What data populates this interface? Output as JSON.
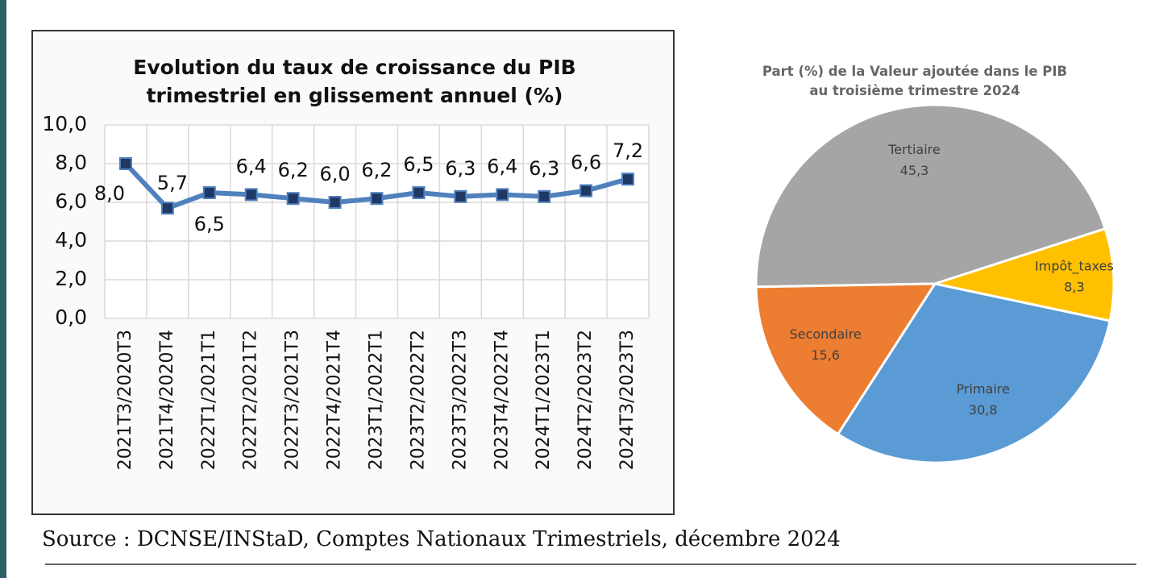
{
  "chart_data": [
    {
      "type": "line",
      "title": "Evolution du taux de croissance du PIB trimestriel en glissement annuel (%)",
      "categories": [
        "2021T3/2020T3",
        "2021T4/2020T4",
        "2022T1/2021T1",
        "2022T2/2021T2",
        "2022T3/2021T3",
        "2022T4/2021T4",
        "2023T1/2022T1",
        "2023T2/2022T2",
        "2023T3/2022T3",
        "2023T4/2022T4",
        "2024T1/2023T1",
        "2024T2/2023T2",
        "2024T3/2023T3"
      ],
      "values": [
        8.0,
        5.7,
        6.5,
        6.4,
        6.2,
        6.0,
        6.2,
        6.5,
        6.3,
        6.4,
        6.3,
        6.6,
        7.2
      ],
      "value_labels": [
        "8,0",
        "5,7",
        "6,5",
        "6,4",
        "6,2",
        "6,0",
        "6,2",
        "6,5",
        "6,3",
        "6,4",
        "6,3",
        "6,6",
        "7,2"
      ],
      "color": "#4f81bd",
      "marker_color": "#1f3864",
      "ylim": [
        0,
        10
      ],
      "yticks": [
        {
          "value": 0,
          "label": "0,0"
        },
        {
          "value": 2,
          "label": "2,0"
        },
        {
          "value": 4,
          "label": "4,0"
        },
        {
          "value": 6,
          "label": "6,0"
        },
        {
          "value": 8,
          "label": "8,0"
        },
        {
          "value": 10,
          "label": "10,0"
        }
      ],
      "grid": true
    },
    {
      "type": "pie",
      "title": "Part (%) de la Valeur ajoutée dans le PIB au troisième trimestre 2024",
      "categories": [
        "Tertiaire",
        "Impôt_taxes",
        "Primaire",
        "Secondaire"
      ],
      "values": [
        45.3,
        8.3,
        30.8,
        15.6
      ],
      "value_labels": [
        "45,3",
        "8,3",
        "30,8",
        "15,6"
      ],
      "colors": [
        "#a5a5a5",
        "#ffc000",
        "#5b9bd5",
        "#ed7d31"
      ]
    }
  ],
  "source": "Source : DCNSE/INStaD, Comptes Nationaux Trimestriels, décembre 2024"
}
